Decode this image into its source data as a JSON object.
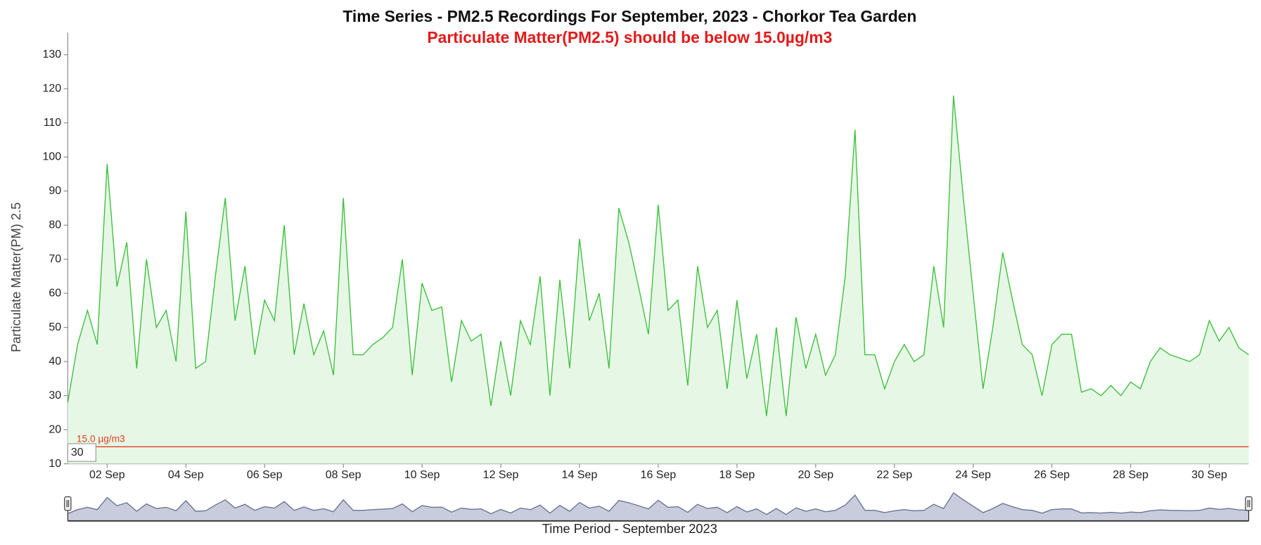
{
  "chart_data": {
    "type": "area",
    "title": "Time Series - PM2.5 Recordings For September, 2023 - Chorkor Tea Garden",
    "subtitle": "Particulate Matter(PM2.5) should be below 15.0µg/m3",
    "y_label": "Particulate Matter(PM) 2.5",
    "x_label": "Time Period - September 2023",
    "input_value": "30",
    "threshold": {
      "value": 15,
      "label": "15.0 µg/m3",
      "color": "#e0401f"
    },
    "color": "#3cc13c",
    "fill_color": "#e6f7e6",
    "x": [
      1,
      1.25,
      1.5,
      1.75,
      2,
      2.25,
      2.5,
      2.75,
      3,
      3.25,
      3.5,
      3.75,
      4,
      4.25,
      4.5,
      4.75,
      5,
      5.25,
      5.5,
      5.75,
      6,
      6.25,
      6.5,
      6.75,
      7,
      7.25,
      7.5,
      7.75,
      8,
      8.25,
      8.5,
      8.75,
      9,
      9.25,
      9.5,
      9.75,
      10,
      10.25,
      10.5,
      10.75,
      11,
      11.25,
      11.5,
      11.75,
      12,
      12.25,
      12.5,
      12.75,
      13,
      13.25,
      13.5,
      13.75,
      14,
      14.25,
      14.5,
      14.75,
      15,
      15.25,
      15.5,
      15.75,
      16,
      16.25,
      16.5,
      16.75,
      17,
      17.25,
      17.5,
      17.75,
      18,
      18.25,
      18.5,
      18.75,
      19,
      19.25,
      19.5,
      19.75,
      20,
      20.25,
      20.5,
      20.75,
      21,
      21.25,
      21.5,
      21.75,
      22,
      22.25,
      22.5,
      22.75,
      23,
      23.25,
      23.5,
      23.75,
      24,
      24.25,
      24.5,
      24.75,
      25,
      25.25,
      25.5,
      25.75,
      26,
      26.25,
      26.5,
      26.75,
      27,
      27.25,
      27.5,
      27.75,
      28,
      28.25,
      28.5,
      28.75,
      29,
      29.25,
      29.5,
      29.75,
      30,
      30.25,
      30.5,
      30.75,
      31
    ],
    "values": [
      28,
      45,
      55,
      45,
      98,
      62,
      75,
      38,
      70,
      50,
      55,
      40,
      84,
      38,
      40,
      65,
      88,
      52,
      68,
      42,
      58,
      52,
      80,
      42,
      57,
      42,
      49,
      36,
      88,
      42,
      42,
      45,
      47,
      50,
      70,
      36,
      63,
      55,
      56,
      34,
      52,
      46,
      48,
      27,
      46,
      30,
      52,
      45,
      65,
      30,
      64,
      38,
      76,
      52,
      60,
      38,
      85,
      75,
      62,
      48,
      86,
      55,
      58,
      33,
      68,
      50,
      55,
      32,
      58,
      35,
      48,
      24,
      50,
      24,
      53,
      38,
      48,
      36,
      42,
      65,
      108,
      42,
      42,
      32,
      40,
      45,
      40,
      42,
      68,
      50,
      118,
      88,
      60,
      32,
      50,
      72,
      58,
      45,
      42,
      30,
      45,
      48,
      48,
      31,
      32,
      30,
      33,
      30,
      34,
      32,
      40,
      44,
      42,
      41,
      40,
      42,
      52,
      46,
      50,
      44,
      42
    ],
    "xlim": [
      1,
      31
    ],
    "ylim": [
      10,
      136
    ],
    "xticks": [
      {
        "value": 2,
        "label": "02 Sep"
      },
      {
        "value": 4,
        "label": "04 Sep"
      },
      {
        "value": 6,
        "label": "06 Sep"
      },
      {
        "value": 8,
        "label": "08 Sep"
      },
      {
        "value": 10,
        "label": "10 Sep"
      },
      {
        "value": 12,
        "label": "12 Sep"
      },
      {
        "value": 14,
        "label": "14 Sep"
      },
      {
        "value": 16,
        "label": "16 Sep"
      },
      {
        "value": 18,
        "label": "18 Sep"
      },
      {
        "value": 20,
        "label": "20 Sep"
      },
      {
        "value": 22,
        "label": "22 Sep"
      },
      {
        "value": 24,
        "label": "24 Sep"
      },
      {
        "value": 26,
        "label": "26 Sep"
      },
      {
        "value": 28,
        "label": "28 Sep"
      },
      {
        "value": 30,
        "label": "30 Sep"
      }
    ],
    "yticks": [
      10,
      20,
      30,
      40,
      50,
      60,
      70,
      80,
      90,
      100,
      110,
      120,
      130
    ]
  }
}
